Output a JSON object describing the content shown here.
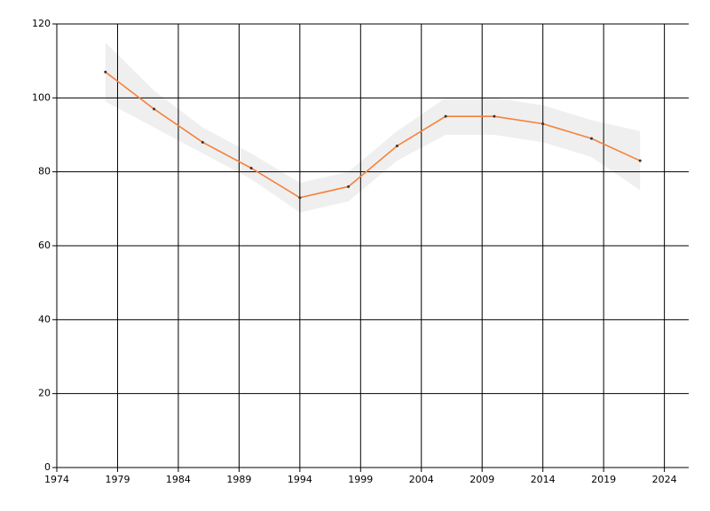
{
  "chart_data": {
    "type": "line",
    "x": [
      1978,
      1982,
      1986,
      1990,
      1994,
      1998,
      2002,
      2006,
      2010,
      2014,
      2018,
      2022
    ],
    "series": [
      {
        "color": "#f5813a",
        "values": [
          107,
          97,
          88,
          81,
          73,
          76,
          87,
          95,
          95,
          93,
          89,
          83
        ],
        "band_upper": [
          115,
          102,
          92,
          85,
          77,
          80,
          91,
          100,
          100,
          98,
          94,
          91
        ],
        "band_lower": [
          99,
          92,
          85,
          78,
          69,
          72,
          83,
          90,
          90,
          88,
          84,
          75
        ],
        "band_color": "#efefef",
        "marker_color": "#333333"
      }
    ],
    "xlim": [
      1974,
      2026
    ],
    "xticks": [
      1974,
      1979,
      1984,
      1989,
      1994,
      1999,
      2004,
      2009,
      2014,
      2019,
      2024
    ],
    "ylim": [
      0,
      120
    ],
    "yticks": [
      0,
      20,
      40,
      60,
      80,
      100,
      120
    ],
    "grid": true
  }
}
